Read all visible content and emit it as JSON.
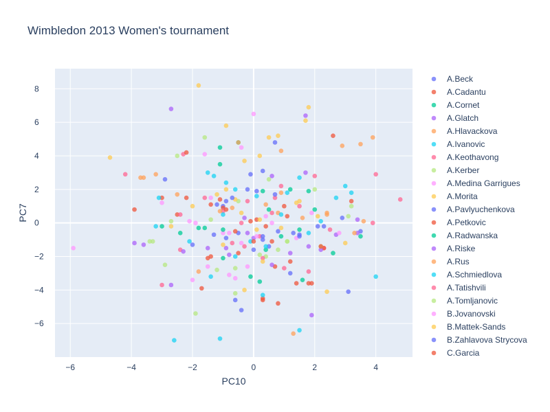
{
  "chart_data": {
    "type": "scatter",
    "title": "Wimbledon 2013 Women's tournament",
    "xlabel": "PC10",
    "ylabel": "PC7",
    "xlim": [
      -6.5,
      5.2
    ],
    "ylim": [
      -8.0,
      9.2
    ],
    "xticks": [
      -6,
      -4,
      -2,
      0,
      2,
      4
    ],
    "yticks": [
      -6,
      -4,
      -2,
      0,
      2,
      4,
      6,
      8
    ],
    "tick_labels": {
      "x": [
        "−6",
        "−4",
        "−2",
        "0",
        "2",
        "4"
      ],
      "y": [
        "−6",
        "−4",
        "−2",
        "0",
        "2",
        "4",
        "6",
        "8"
      ]
    },
    "grid": true,
    "legend_position": "right",
    "plot_bg": "#e5ecf6",
    "series": [
      {
        "name": "A.Beck",
        "color": "#636efa",
        "points": [
          [
            -2.9,
            2.6
          ],
          [
            -1.0,
            1.0
          ],
          [
            0.3,
            3.1
          ],
          [
            -0.6,
            -4.6
          ],
          [
            0.7,
            4.8
          ],
          [
            2.9,
            0.3
          ],
          [
            1.2,
            -3.0
          ],
          [
            -0.4,
            -5.2
          ],
          [
            1.5,
            -0.7
          ]
        ]
      },
      {
        "name": "A.Cadantu",
        "color": "#EF553B",
        "points": [
          [
            -3.9,
            0.8
          ],
          [
            -2.2,
            1.5
          ],
          [
            -1.4,
            1.1
          ],
          [
            -1.0,
            0.9
          ],
          [
            -1.7,
            -3.9
          ],
          [
            0.3,
            -4.5
          ],
          [
            0.6,
            -1.1
          ],
          [
            1.8,
            -3.6
          ],
          [
            2.6,
            5.2
          ],
          [
            0.8,
            -4.8
          ]
        ]
      },
      {
        "name": "A.Cornet",
        "color": "#00cc96",
        "points": [
          [
            -2.4,
            -0.6
          ],
          [
            -1.8,
            -0.3
          ],
          [
            -1.1,
            4.5
          ],
          [
            -0.5,
            4.8
          ],
          [
            0.3,
            1.9
          ],
          [
            1.2,
            2.0
          ],
          [
            2.0,
            0.8
          ],
          [
            2.6,
            -1.8
          ],
          [
            1.6,
            -3.4
          ],
          [
            0.4,
            -1.6
          ],
          [
            -1.0,
            -2.1
          ]
        ]
      },
      {
        "name": "A.Glatch",
        "color": "#ab63fa",
        "points": [
          [
            -2.7,
            6.8
          ],
          [
            -3.9,
            -1.2
          ],
          [
            -0.2,
            -0.6
          ],
          [
            1.7,
            6.4
          ],
          [
            1.7,
            3.0
          ],
          [
            2.7,
            -0.7
          ],
          [
            1.9,
            -5.5
          ],
          [
            3.4,
            0.2
          ],
          [
            -2.7,
            -3.7
          ],
          [
            0.6,
            2.8
          ]
        ]
      },
      {
        "name": "A.Hlavackova",
        "color": "#FFA15A",
        "points": [
          [
            -3.6,
            2.7
          ],
          [
            -3.2,
            2.9
          ],
          [
            -1.8,
            -2.9
          ],
          [
            0.9,
            1.8
          ],
          [
            2.9,
            4.6
          ],
          [
            3.5,
            4.7
          ],
          [
            3.9,
            5.1
          ],
          [
            3.6,
            0.1
          ],
          [
            2.4,
            0.5
          ],
          [
            1.3,
            -6.6
          ]
        ]
      },
      {
        "name": "A.Ivanovic",
        "color": "#19d3f3",
        "points": [
          [
            -3.2,
            -0.2
          ],
          [
            -2.6,
            -7.0
          ],
          [
            -1.5,
            3.0
          ],
          [
            -0.9,
            2.4
          ],
          [
            -0.6,
            2.0
          ],
          [
            1.1,
            1.8
          ],
          [
            1.5,
            2.7
          ],
          [
            2.7,
            1.5
          ],
          [
            3.0,
            2.2
          ],
          [
            4.0,
            -3.2
          ],
          [
            1.5,
            -6.4
          ],
          [
            0.3,
            -4.3
          ],
          [
            -1.1,
            -6.9
          ],
          [
            -1.4,
            -3.2
          ]
        ]
      },
      {
        "name": "A.Keothavong",
        "color": "#FF6692",
        "points": [
          [
            -4.2,
            2.9
          ],
          [
            -2.3,
            4.1
          ],
          [
            -1.0,
            0.7
          ],
          [
            -0.4,
            0.0
          ],
          [
            0.6,
            0.6
          ],
          [
            1.5,
            1.0
          ],
          [
            2.3,
            -1.5
          ],
          [
            4.0,
            2.9
          ],
          [
            4.8,
            1.4
          ],
          [
            0.2,
            -0.8
          ],
          [
            -2.4,
            -1.6
          ],
          [
            -3.0,
            -3.7
          ],
          [
            0.9,
            2.2
          ],
          [
            2.0,
            2.8
          ]
        ]
      },
      {
        "name": "A.Kerber",
        "color": "#B6E880",
        "points": [
          [
            -2.5,
            4.0
          ],
          [
            -1.6,
            5.1
          ],
          [
            -3.3,
            -1.1
          ],
          [
            -2.9,
            -2.5
          ],
          [
            -1.9,
            -5.4
          ],
          [
            -0.6,
            -4.2
          ],
          [
            0.4,
            -2.0
          ],
          [
            1.1,
            -1.1
          ],
          [
            2.0,
            2.0
          ],
          [
            3.2,
            1.0
          ],
          [
            -0.5,
            1.3
          ]
        ]
      },
      {
        "name": "A.Medina Garrigues",
        "color": "#FF97FF",
        "points": [
          [
            -5.9,
            -1.5
          ],
          [
            -3.0,
            1.2
          ],
          [
            -1.6,
            4.1
          ],
          [
            -0.4,
            4.5
          ],
          [
            0.0,
            6.5
          ],
          [
            -1.0,
            -0.6
          ],
          [
            -0.6,
            -3.3
          ],
          [
            -0.2,
            -2.6
          ],
          [
            0.4,
            0.4
          ],
          [
            -1.9,
            0.0
          ],
          [
            -2.0,
            -3.4
          ]
        ]
      },
      {
        "name": "A.Morita",
        "color": "#FECB52",
        "points": [
          [
            -4.7,
            3.9
          ],
          [
            -1.8,
            8.2
          ],
          [
            -0.9,
            5.8
          ],
          [
            -0.3,
            3.7
          ],
          [
            0.5,
            5.1
          ],
          [
            0.8,
            5.2
          ],
          [
            1.7,
            6.1
          ],
          [
            1.8,
            6.9
          ],
          [
            1.5,
            1.3
          ],
          [
            0.1,
            -0.4
          ],
          [
            -1.0,
            -1.3
          ],
          [
            2.4,
            -4.1
          ],
          [
            -0.3,
            -4.0
          ],
          [
            0.2,
            4.0
          ]
        ]
      },
      {
        "name": "A.Pavlyuchenkova",
        "color": "#636efa",
        "points": [
          [
            -2.0,
            -1.3
          ],
          [
            -1.2,
            1.1
          ],
          [
            -0.9,
            1.3
          ],
          [
            0.1,
            1.9
          ],
          [
            0.5,
            -1.4
          ],
          [
            1.3,
            -0.6
          ],
          [
            2.1,
            -0.2
          ],
          [
            3.1,
            -4.1
          ],
          [
            3.5,
            -0.5
          ],
          [
            0.3,
            -1.0
          ],
          [
            -0.2,
            2.0
          ]
        ]
      },
      {
        "name": "A.Petkovic",
        "color": "#EF553B",
        "points": [
          [
            -3.0,
            1.5
          ],
          [
            -2.5,
            0.5
          ],
          [
            -1.5,
            -2.1
          ],
          [
            -0.5,
            -1.8
          ],
          [
            0.7,
            -2.6
          ],
          [
            1.2,
            -2.3
          ],
          [
            1.9,
            -3.6
          ],
          [
            2.3,
            -1.5
          ],
          [
            0.3,
            -4.6
          ],
          [
            -0.9,
            0.8
          ],
          [
            0.1,
            0.2
          ],
          [
            1.1,
            0.4
          ]
        ]
      },
      {
        "name": "A.Radwanska",
        "color": "#00cc96",
        "points": [
          [
            -3.0,
            -0.2
          ],
          [
            -1.6,
            -0.3
          ],
          [
            -1.0,
            -0.4
          ],
          [
            -0.1,
            -3.2
          ],
          [
            0.5,
            0.8
          ],
          [
            0.9,
            -0.8
          ],
          [
            1.5,
            -0.4
          ],
          [
            3.5,
            -0.8
          ],
          [
            1.8,
            1.9
          ],
          [
            0.2,
            -3.5
          ],
          [
            -1.1,
            3.5
          ]
        ]
      },
      {
        "name": "A.Riske",
        "color": "#ab63fa",
        "points": [
          [
            -3.6,
            -1.3
          ],
          [
            -2.3,
            -1.7
          ],
          [
            -1.5,
            -1.5
          ],
          [
            -0.9,
            -1.5
          ],
          [
            -0.3,
            0.3
          ],
          [
            0.6,
            -2.5
          ],
          [
            1.2,
            -1.8
          ],
          [
            1.8,
            -1.4
          ],
          [
            2.2,
            -1.6
          ],
          [
            3.4,
            -0.6
          ],
          [
            -0.8,
            -1.9
          ],
          [
            0.0,
            -0.9
          ]
        ]
      },
      {
        "name": "A.Rus",
        "color": "#FFA15A",
        "points": [
          [
            -3.7,
            2.7
          ],
          [
            -2.5,
            1.7
          ],
          [
            -1.1,
            0.7
          ],
          [
            -0.7,
            0.9
          ],
          [
            0.4,
            1.1
          ],
          [
            0.8,
            0.6
          ],
          [
            1.6,
            0.3
          ],
          [
            2.4,
            0.6
          ],
          [
            3.3,
            -0.6
          ],
          [
            -0.5,
            4.8
          ],
          [
            0.9,
            4.3
          ]
        ]
      },
      {
        "name": "A.Schmiedlova",
        "color": "#19d3f3",
        "points": [
          [
            -3.1,
            1.5
          ],
          [
            -2.1,
            -1.1
          ],
          [
            -1.0,
            0.5
          ],
          [
            -0.1,
            -1.1
          ],
          [
            0.4,
            -1.4
          ],
          [
            0.9,
            0.5
          ],
          [
            1.8,
            -0.6
          ],
          [
            2.2,
            0.1
          ],
          [
            3.2,
            1.8
          ],
          [
            0.1,
            1.6
          ],
          [
            -0.6,
            -2.0
          ],
          [
            -1.3,
            2.8
          ]
        ]
      },
      {
        "name": "A.Tatishvili",
        "color": "#FF6692",
        "points": [
          [
            -2.4,
            0.5
          ],
          [
            -1.6,
            1.5
          ],
          [
            -0.7,
            -1.2
          ],
          [
            -0.3,
            -1.4
          ],
          [
            0.3,
            -2.1
          ],
          [
            1.0,
            -2.7
          ],
          [
            1.8,
            -2.9
          ],
          [
            2.5,
            -0.4
          ],
          [
            3.9,
            0.0
          ],
          [
            0.7,
            1.5
          ],
          [
            -0.2,
            1.3
          ]
        ]
      },
      {
        "name": "A.Tomljanovic",
        "color": "#B6E880",
        "points": [
          [
            -3.4,
            -1.1
          ],
          [
            -2.7,
            0.1
          ],
          [
            -1.4,
            0.2
          ],
          [
            -0.6,
            -2.7
          ],
          [
            0.2,
            -1.9
          ],
          [
            0.8,
            -1.6
          ],
          [
            1.1,
            -1.1
          ],
          [
            2.2,
            -1.4
          ],
          [
            3.1,
            0.4
          ],
          [
            -1.2,
            -2.8
          ],
          [
            0.5,
            2.6
          ]
        ]
      },
      {
        "name": "B.Jovanovski",
        "color": "#FF97FF",
        "points": [
          [
            -2.1,
            0.1
          ],
          [
            -1.4,
            1.5
          ],
          [
            -0.8,
            -0.6
          ],
          [
            -0.4,
            -1.2
          ],
          [
            0.1,
            -0.8
          ],
          [
            0.6,
            0.0
          ],
          [
            1.4,
            -0.9
          ],
          [
            1.9,
            0.6
          ],
          [
            2.8,
            -0.6
          ],
          [
            -1.5,
            -2.6
          ],
          [
            -0.8,
            -3.1
          ]
        ]
      },
      {
        "name": "B.Mattek-Sands",
        "color": "#FECB52",
        "points": [
          [
            -2.7,
            -0.2
          ],
          [
            -2.0,
            1.0
          ],
          [
            -1.2,
            1.7
          ],
          [
            -0.6,
            1.4
          ],
          [
            0.2,
            0.2
          ],
          [
            0.9,
            -0.3
          ],
          [
            1.4,
            1.2
          ],
          [
            2.1,
            0.4
          ],
          [
            3.0,
            -1.2
          ],
          [
            -0.9,
            2.0
          ],
          [
            0.3,
            -2.3
          ],
          [
            -0.4,
            0.6
          ]
        ]
      },
      {
        "name": "B.Zahlavova Strycova",
        "color": "#636efa",
        "points": [
          [
            -1.3,
            -0.7
          ],
          [
            -0.9,
            -0.9
          ],
          [
            -0.5,
            -0.6
          ],
          [
            0.0,
            -1.6
          ],
          [
            0.3,
            -0.8
          ],
          [
            0.8,
            -0.5
          ],
          [
            1.5,
            -0.8
          ],
          [
            2.3,
            -0.2
          ],
          [
            -0.1,
            2.9
          ],
          [
            -0.7,
            1.5
          ],
          [
            0.7,
            1.7
          ]
        ]
      },
      {
        "name": "C.Garcia",
        "color": "#EF553B",
        "points": [
          [
            -2.2,
            4.2
          ],
          [
            -1.1,
            1.4
          ],
          [
            -0.6,
            -0.5
          ],
          [
            -0.1,
            0.1
          ],
          [
            0.4,
            -0.2
          ],
          [
            1.0,
            1.0
          ],
          [
            1.4,
            -3.6
          ],
          [
            2.2,
            -1.4
          ],
          [
            3.2,
            1.3
          ],
          [
            -1.4,
            -2.0
          ],
          [
            0.0,
            -1.1
          ]
        ]
      }
    ]
  }
}
